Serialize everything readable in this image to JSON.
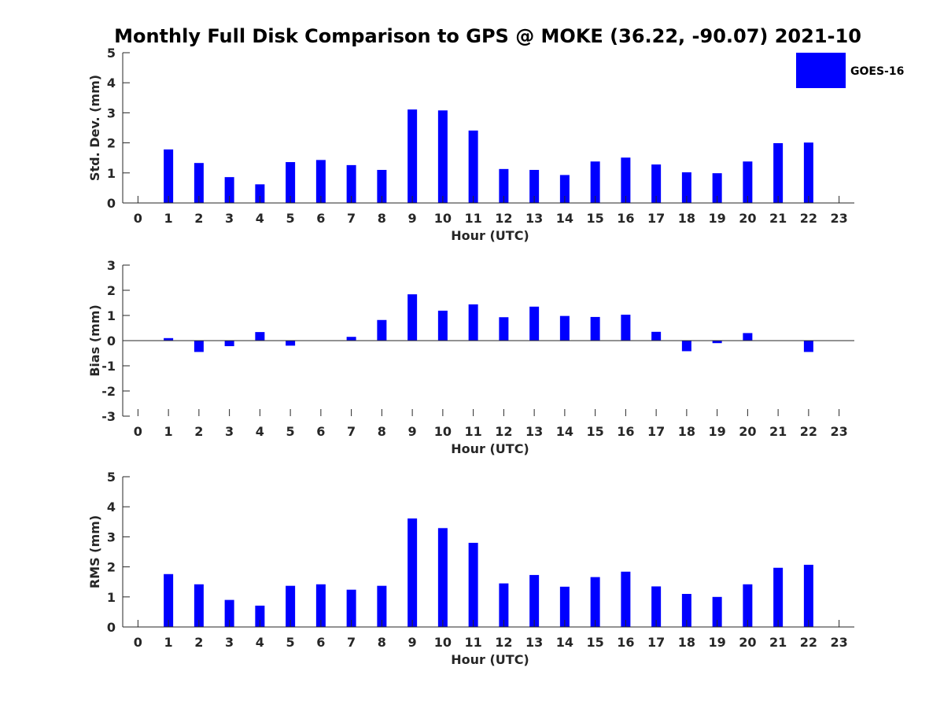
{
  "chart_title": "Monthly Full Disk Comparison to GPS @ MOKE (36.22, -90.07) 2021-10",
  "legend": {
    "label": "GOES-16",
    "color": "#0000ff",
    "placement": "top-right"
  },
  "chart_data": [
    {
      "type": "bar",
      "xlabel": "Hour (UTC)",
      "ylabel": "Std. Dev. (mm)",
      "xlim": [
        -0.5,
        23.5
      ],
      "ylim": [
        0,
        5
      ],
      "yticks": [
        0,
        1,
        2,
        3,
        4,
        5
      ],
      "categories": [
        0,
        1,
        2,
        3,
        4,
        5,
        6,
        7,
        8,
        9,
        10,
        11,
        12,
        13,
        14,
        15,
        16,
        17,
        18,
        19,
        20,
        21,
        22,
        23
      ],
      "series": [
        {
          "name": "GOES-16",
          "color": "#0000ff",
          "values": [
            null,
            1.78,
            1.33,
            0.86,
            0.62,
            1.36,
            1.43,
            1.26,
            1.1,
            3.11,
            3.08,
            2.41,
            1.13,
            1.1,
            0.93,
            1.38,
            1.51,
            1.28,
            1.02,
            0.99,
            1.38,
            1.99,
            2.01,
            null
          ]
        }
      ]
    },
    {
      "type": "bar",
      "xlabel": "Hour (UTC)",
      "ylabel": "Bias (mm)",
      "xlim": [
        -0.5,
        23.5
      ],
      "ylim": [
        -3,
        3
      ],
      "yticks": [
        -3,
        -2,
        -1,
        0,
        1,
        2,
        3
      ],
      "categories": [
        0,
        1,
        2,
        3,
        4,
        5,
        6,
        7,
        8,
        9,
        10,
        11,
        12,
        13,
        14,
        15,
        16,
        17,
        18,
        19,
        20,
        21,
        22,
        23
      ],
      "series": [
        {
          "name": "GOES-16",
          "color": "#0000ff",
          "values": [
            null,
            0.1,
            -0.45,
            -0.22,
            0.34,
            -0.2,
            0.0,
            0.15,
            0.82,
            1.84,
            1.19,
            1.44,
            0.93,
            1.35,
            0.98,
            0.94,
            1.03,
            0.35,
            -0.42,
            -0.1,
            0.3,
            0.0,
            -0.45,
            null
          ]
        }
      ]
    },
    {
      "type": "bar",
      "xlabel": "Hour (UTC)",
      "ylabel": "RMS (mm)",
      "xlim": [
        -0.5,
        23.5
      ],
      "ylim": [
        0,
        5
      ],
      "yticks": [
        0,
        1,
        2,
        3,
        4,
        5
      ],
      "categories": [
        0,
        1,
        2,
        3,
        4,
        5,
        6,
        7,
        8,
        9,
        10,
        11,
        12,
        13,
        14,
        15,
        16,
        17,
        18,
        19,
        20,
        21,
        22,
        23
      ],
      "series": [
        {
          "name": "GOES-16",
          "color": "#0000ff",
          "values": [
            null,
            1.76,
            1.42,
            0.9,
            0.71,
            1.37,
            1.42,
            1.24,
            1.37,
            3.61,
            3.29,
            2.8,
            1.45,
            1.73,
            1.34,
            1.66,
            1.84,
            1.35,
            1.1,
            1.0,
            1.42,
            1.97,
            2.07,
            null
          ]
        }
      ]
    }
  ]
}
